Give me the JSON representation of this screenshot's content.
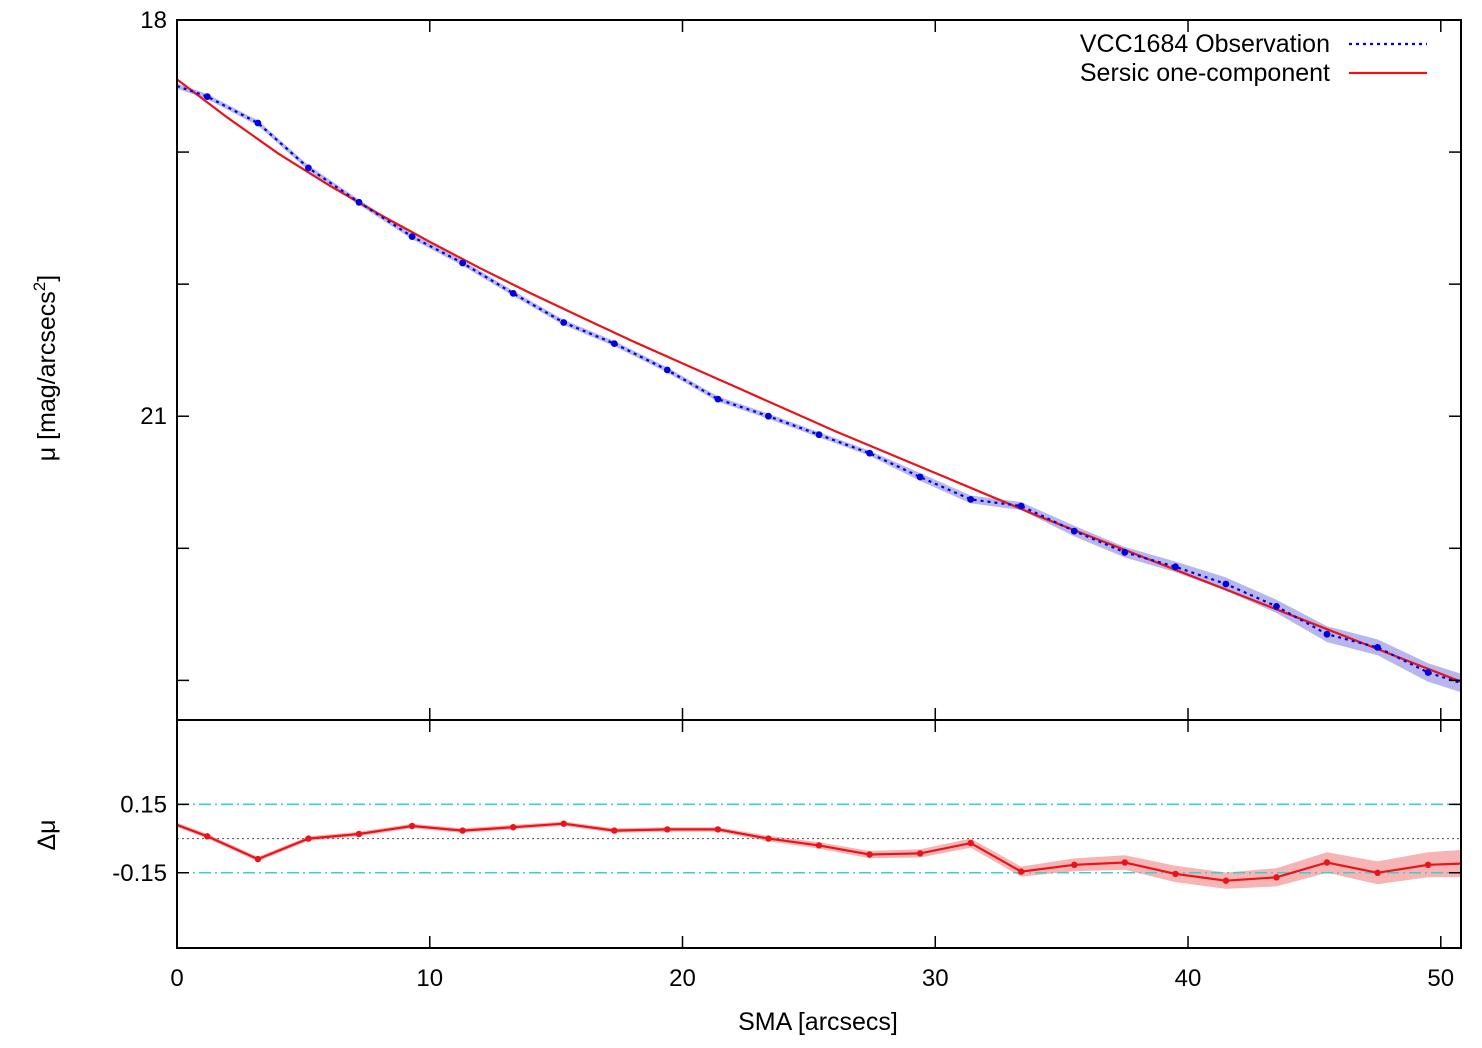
{
  "chart_data": {
    "type": "line",
    "x_label": "SMA [arcsecs]",
    "x_range": [
      0,
      50.8
    ],
    "x_ticks": [
      0,
      10,
      20,
      30,
      40,
      50
    ],
    "legend_position": "top-right",
    "colors": {
      "observation": "#0000dd",
      "observation_band": "#b7b7ee",
      "model": "#e8141b",
      "residual": "#e8141b",
      "residual_band": "#f7b4b4",
      "threshold": "#3ccfcf",
      "zero": "#666666"
    },
    "top_panel": {
      "y_label": "μ [mag/arcsecs",
      "y_label_superscript": "2",
      "y_label_suffix": "]",
      "y_range": [
        18,
        23.3
      ],
      "y_inverted": true,
      "y_ticks": [
        18,
        19,
        20,
        21,
        22,
        23
      ],
      "y_tick_labels": [
        "18",
        "",
        "",
        "21",
        "",
        ""
      ],
      "series": [
        {
          "name": "VCC1684 Observation",
          "style": "dotted-with-points",
          "x": [
            1.2,
            3.2,
            5.2,
            7.2,
            9.3,
            11.3,
            13.3,
            15.3,
            17.3,
            19.4,
            21.4,
            23.4,
            25.4,
            27.4,
            29.4,
            31.4,
            33.4,
            35.5,
            37.5,
            39.5,
            41.5,
            43.5,
            45.5,
            47.5,
            49.5
          ],
          "y": [
            18.58,
            18.78,
            19.12,
            19.38,
            19.64,
            19.84,
            20.07,
            20.29,
            20.45,
            20.65,
            20.87,
            21.0,
            21.14,
            21.28,
            21.46,
            21.63,
            21.68,
            21.87,
            22.03,
            22.14,
            22.27,
            22.44,
            22.65,
            22.75,
            22.94
          ],
          "band": [
            0.02,
            0.02,
            0.02,
            0.02,
            0.02,
            0.02,
            0.02,
            0.02,
            0.02,
            0.02,
            0.02,
            0.02,
            0.02,
            0.02,
            0.03,
            0.03,
            0.03,
            0.04,
            0.04,
            0.04,
            0.05,
            0.05,
            0.06,
            0.06,
            0.07
          ],
          "start": [
            0,
            18.5
          ],
          "end": [
            50.8,
            23.02
          ]
        },
        {
          "name": "Sersic one-component",
          "style": "solid",
          "x": [
            0,
            2,
            4,
            6,
            8,
            10,
            12,
            14,
            16,
            18,
            20,
            22,
            24,
            26,
            28,
            30,
            32,
            34,
            36,
            38,
            40,
            42,
            44,
            46,
            48,
            50,
            50.8
          ],
          "y": [
            18.45,
            18.74,
            19.01,
            19.25,
            19.47,
            19.68,
            19.88,
            20.07,
            20.25,
            20.43,
            20.6,
            20.77,
            20.94,
            21.11,
            21.27,
            21.43,
            21.59,
            21.75,
            21.9,
            22.05,
            22.2,
            22.35,
            22.5,
            22.65,
            22.8,
            22.95,
            23.01
          ]
        }
      ]
    },
    "bottom_panel": {
      "y_label": "Δμ",
      "y_range": [
        -0.48,
        0.52
      ],
      "y_ticks": [
        0.15,
        -0.15
      ],
      "y_tick_labels": [
        "0.15",
        "-0.15"
      ],
      "thresholds": [
        0.15,
        -0.15
      ],
      "zero_line": 0,
      "series": [
        {
          "name": "residual",
          "x": [
            0,
            1.2,
            3.2,
            5.2,
            7.2,
            9.3,
            11.3,
            13.3,
            15.3,
            17.3,
            19.4,
            21.4,
            23.4,
            25.4,
            27.4,
            29.4,
            31.4,
            33.4,
            35.5,
            37.5,
            39.5,
            41.5,
            43.5,
            45.5,
            47.5,
            49.5,
            50.8
          ],
          "y": [
            0.06,
            0.01,
            -0.09,
            0.0,
            0.02,
            0.055,
            0.035,
            0.05,
            0.065,
            0.035,
            0.04,
            0.04,
            0.0,
            -0.03,
            -0.07,
            -0.065,
            -0.02,
            -0.145,
            -0.115,
            -0.105,
            -0.155,
            -0.185,
            -0.17,
            -0.105,
            -0.15,
            -0.115,
            -0.11
          ],
          "band": [
            0.01,
            0.01,
            0.01,
            0.01,
            0.01,
            0.01,
            0.01,
            0.01,
            0.01,
            0.01,
            0.01,
            0.01,
            0.012,
            0.014,
            0.016,
            0.018,
            0.02,
            0.022,
            0.028,
            0.032,
            0.036,
            0.036,
            0.04,
            0.045,
            0.05,
            0.055,
            0.06
          ]
        }
      ]
    }
  }
}
